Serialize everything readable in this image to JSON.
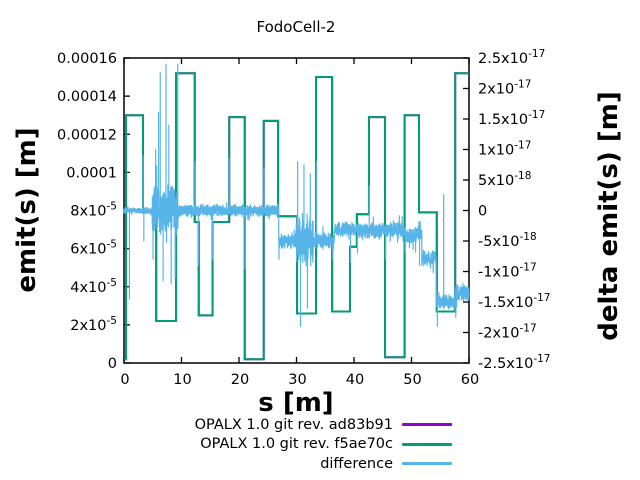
{
  "chart_data": {
    "type": "line",
    "title": "FodoCell-2",
    "xlabel": "s [m]",
    "ylabel": "emit(s) [m]",
    "y2label": "delta emit(s) [m]",
    "xlim": [
      0,
      60
    ],
    "ylim": [
      0,
      0.00016
    ],
    "y2lim": [
      -2.5e-17,
      2.5e-17
    ],
    "grid": false,
    "legend_position": "below-plot-right",
    "background": "#ffffff",
    "border_color": "#000000",
    "x_ticks": [
      {
        "v": 0,
        "label": "0"
      },
      {
        "v": 10,
        "label": "10"
      },
      {
        "v": 20,
        "label": "20"
      },
      {
        "v": 30,
        "label": "30"
      },
      {
        "v": 40,
        "label": "40"
      },
      {
        "v": 50,
        "label": "50"
      },
      {
        "v": 60,
        "label": "60"
      }
    ],
    "y_ticks": [
      {
        "v": 0,
        "label": "0"
      },
      {
        "v": 2e-05,
        "label": "2x10^-5"
      },
      {
        "v": 4e-05,
        "label": "4x10^-5"
      },
      {
        "v": 6e-05,
        "label": "6x10^-5"
      },
      {
        "v": 8e-05,
        "label": "8x10^-5"
      },
      {
        "v": 0.0001,
        "label": "0.0001"
      },
      {
        "v": 0.00012,
        "label": "0.00012"
      },
      {
        "v": 0.00014,
        "label": "0.00014"
      },
      {
        "v": 0.00016,
        "label": "0.00016"
      }
    ],
    "y2_ticks": [
      {
        "v": -2.5e-17,
        "label": "-2.5x10^-17"
      },
      {
        "v": -2e-17,
        "label": "-2x10^-17"
      },
      {
        "v": -1.5e-17,
        "label": "-1.5x10^-17"
      },
      {
        "v": -1e-17,
        "label": "-1x10^-17"
      },
      {
        "v": -5e-18,
        "label": "-5x10^-18"
      },
      {
        "v": 0,
        "label": "0"
      },
      {
        "v": 5e-18,
        "label": "5x10^-18"
      },
      {
        "v": 1e-17,
        "label": "1x10^-17"
      },
      {
        "v": 1.5e-17,
        "label": "1.5x10^-17"
      },
      {
        "v": 2e-17,
        "label": "2x10^-17"
      },
      {
        "v": 2.5e-17,
        "label": "2.5x10^-17"
      }
    ],
    "series": [
      {
        "name": "opalx-ad83b91",
        "label": "OPALX 1.0 git rev. ad83b91",
        "color": "#9400d3",
        "axis": "y1",
        "note": "identical to f5ae70c curve, completely hidden beneath it",
        "steps_same_as": 1
      },
      {
        "name": "opalx-f5ae70c",
        "label": "OPALX 1.0 git rev. f5ae70c",
        "color": "#009e73",
        "axis": "y1",
        "steps": [
          [
            0.0,
            0.35,
            2e-06
          ],
          [
            0.35,
            3.3,
            0.00013
          ],
          [
            3.3,
            5.6,
            7.9e-05
          ],
          [
            5.6,
            9.05,
            2.2e-05
          ],
          [
            9.05,
            12.3,
            0.000152
          ],
          [
            12.3,
            13.0,
            7.4e-05
          ],
          [
            13.0,
            15.4,
            2.5e-05
          ],
          [
            15.4,
            18.3,
            7.4e-05
          ],
          [
            18.3,
            21.0,
            0.000129
          ],
          [
            21.0,
            24.3,
            2e-06
          ],
          [
            24.3,
            26.8,
            0.000127
          ],
          [
            26.8,
            30.1,
            7.7e-05
          ],
          [
            30.1,
            33.4,
            2.6e-05
          ],
          [
            33.4,
            36.2,
            0.00015
          ],
          [
            36.2,
            39.3,
            2.7e-05
          ],
          [
            39.3,
            40.5,
            6.1e-05
          ],
          [
            40.5,
            42.6,
            7.8e-05
          ],
          [
            42.6,
            45.4,
            0.000129
          ],
          [
            45.4,
            48.8,
            3e-06
          ],
          [
            48.8,
            51.3,
            0.00013
          ],
          [
            51.3,
            54.4,
            7.9e-05
          ],
          [
            54.4,
            57.6,
            2.7e-05
          ],
          [
            57.6,
            60.0,
            0.000152
          ]
        ]
      },
      {
        "name": "difference",
        "label": "difference",
        "color": "#56b4e9",
        "axis": "y2",
        "baseline_steps": [
          [
            0,
            4.9,
            0,
            5e-19
          ],
          [
            4.9,
            9.4,
            0,
            4.5e-18
          ],
          [
            9.4,
            26.9,
            0,
            1.1e-18
          ],
          [
            26.9,
            29.8,
            -5e-18,
            1.3e-18
          ],
          [
            29.8,
            32.9,
            -5e-18,
            5e-18
          ],
          [
            32.9,
            36.6,
            -5e-18,
            1.6e-18
          ],
          [
            36.6,
            48.8,
            -3.2e-18,
            1.4e-18
          ],
          [
            48.8,
            51.8,
            -4e-18,
            1.4e-18
          ],
          [
            51.8,
            54.3,
            -8e-18,
            1.5e-18
          ],
          [
            54.3,
            57.6,
            -1.5e-17,
            1.2e-18
          ],
          [
            57.6,
            60,
            -1.35e-17,
            1.5e-18
          ]
        ],
        "spikes": [
          [
            0.95,
            -1.45e-17
          ],
          [
            3.3,
            9e-18
          ],
          [
            3.45,
            -5e-18
          ],
          [
            5.05,
            -8e-18
          ],
          [
            5.5,
            1e-17
          ],
          [
            6.0,
            1.6e-17
          ],
          [
            6.3,
            2.26e-17
          ],
          [
            6.8,
            -1.15e-17
          ],
          [
            7.3,
            2.4e-17
          ],
          [
            7.8,
            1.4e-17
          ],
          [
            8.2,
            -1.2e-17
          ],
          [
            8.9,
            -1.1e-17
          ],
          [
            9.35,
            2.4e-17
          ],
          [
            12.35,
            8e-18
          ],
          [
            12.95,
            -9e-18
          ],
          [
            15.4,
            -8e-18
          ],
          [
            18.3,
            8.5e-18
          ],
          [
            21.05,
            -9.6e-18
          ],
          [
            24.35,
            7e-18
          ],
          [
            26.95,
            -8e-18
          ],
          [
            30.2,
            8e-18
          ],
          [
            30.7,
            -1.9e-17
          ],
          [
            31.3,
            7.5e-18
          ],
          [
            31.9,
            -1.6e-17
          ],
          [
            32.4,
            6e-18
          ],
          [
            33.45,
            8e-18
          ],
          [
            36.3,
            -8e-18
          ],
          [
            39.4,
            -8.5e-18
          ],
          [
            40.6,
            -7e-18
          ],
          [
            42.65,
            4e-18
          ],
          [
            45.5,
            -8e-18
          ],
          [
            48.9,
            -7e-18
          ],
          [
            51.4,
            -9e-18
          ],
          [
            54.5,
            -1.9e-17
          ],
          [
            55.6,
            2.6e-18
          ],
          [
            57.7,
            -1.75e-17
          ]
        ]
      }
    ]
  }
}
